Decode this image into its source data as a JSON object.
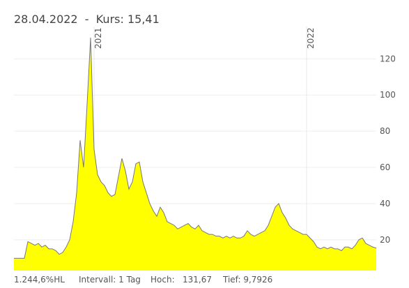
{
  "chart_data": {
    "type": "area",
    "title": "28.04.2022  -  Kurs: 15,41",
    "categories": [
      null,
      null,
      null,
      null,
      null,
      null,
      null,
      null,
      null,
      null,
      null,
      null,
      null,
      null,
      null,
      null,
      null,
      null,
      null,
      null,
      null,
      null,
      null,
      "2021",
      null,
      null,
      null,
      null,
      null,
      null,
      null,
      null,
      null,
      null,
      null,
      null,
      null,
      null,
      null,
      null,
      null,
      null,
      null,
      null,
      null,
      null,
      null,
      null,
      null,
      null,
      null,
      null,
      null,
      null,
      null,
      null,
      null,
      null,
      null,
      null,
      null,
      null,
      null,
      null,
      null,
      null,
      null,
      null,
      null,
      null,
      null,
      null,
      null,
      null,
      null,
      null,
      null,
      null,
      null,
      null,
      null,
      null,
      null,
      null,
      "2022",
      null,
      null,
      null,
      null,
      null,
      null,
      null,
      null,
      null,
      null,
      null,
      null,
      null,
      null,
      null,
      null,
      null,
      null,
      null,
      null
    ],
    "values": [
      9.7926,
      9.8,
      9.8,
      9.8,
      19,
      18,
      17,
      18,
      16,
      17,
      15,
      15,
      14,
      12,
      13,
      16,
      20,
      30,
      46,
      75,
      60,
      95,
      131.67,
      70,
      56,
      52,
      50,
      46,
      44,
      45,
      55,
      65,
      58,
      48,
      52,
      62,
      63,
      52,
      46,
      40,
      36,
      33,
      38,
      35,
      30,
      29,
      28,
      26,
      27,
      28,
      29,
      27,
      26,
      28,
      25,
      24,
      23,
      23,
      22,
      22,
      21,
      22,
      21,
      22,
      21,
      21,
      22,
      25,
      23,
      22,
      23,
      24,
      25,
      28,
      33,
      38,
      40,
      35,
      32,
      28,
      26,
      25,
      24,
      23,
      23,
      21,
      19,
      16,
      15,
      16,
      15,
      16,
      15,
      15,
      14,
      16,
      16,
      15,
      17,
      20,
      21,
      18,
      17,
      16,
      15.41
    ],
    "color": "#ffff00",
    "line_color": "#777777",
    "ylim": [
      3,
      139
    ],
    "yticks": [
      20,
      40,
      60,
      80,
      100,
      120
    ],
    "grid": true,
    "stats": [
      "1.244,6%HL",
      "Intervall: 1 Tag",
      "Hoch:",
      "131,67",
      "Tief: 9,7926"
    ]
  }
}
